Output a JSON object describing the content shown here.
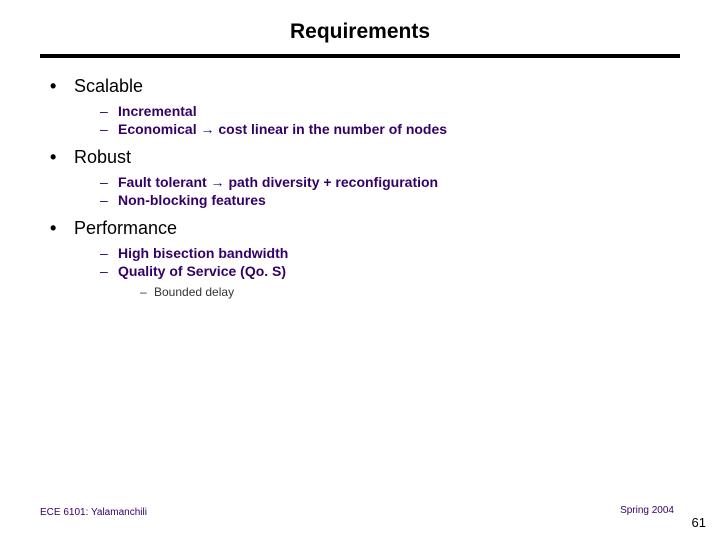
{
  "colors": {
    "title": "#000000",
    "rule": "#000000",
    "topText": "#000000",
    "subDash": "#330066",
    "subText": "#330066",
    "subsubDash": "#333333",
    "subsubText": "#333333",
    "footer": "#330066",
    "background": "#ffffff"
  },
  "typography": {
    "titleSize": 21,
    "topSize": 18,
    "subSize": 14,
    "subsubSize": 12,
    "footerSize": 10,
    "pageNumSize": 13
  },
  "title": "Requirements",
  "items": [
    {
      "label": "Scalable",
      "subs": [
        {
          "text": "Incremental"
        },
        {
          "text": "Economical → cost linear in the number of nodes"
        }
      ]
    },
    {
      "label": "Robust",
      "subs": [
        {
          "text": "Fault tolerant → path diversity + reconfiguration"
        },
        {
          "text": "Non-blocking features"
        }
      ]
    },
    {
      "label": "Performance",
      "subs": [
        {
          "text": "High bisection bandwidth"
        },
        {
          "text": "Quality of Service (Qo. S)",
          "subs": [
            {
              "text": "Bounded delay"
            }
          ]
        }
      ]
    }
  ],
  "footer": {
    "left": "ECE 6101: Yalamanchili",
    "right": "Spring 2004",
    "pageNumber": "61"
  },
  "bullets": {
    "top": "•",
    "sub": "–",
    "subsub": "–"
  }
}
